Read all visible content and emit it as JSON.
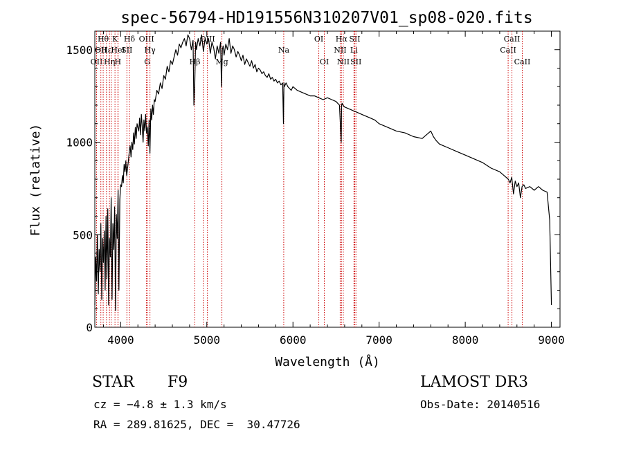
{
  "chart_data": {
    "type": "line",
    "title": "spec-56794-HD191556N310207V01_sp08-020.fits",
    "xlabel": "Wavelength (Å)",
    "ylabel": "Flux (relative)",
    "xlim": [
      3700,
      9100
    ],
    "ylim": [
      0,
      1600
    ],
    "xticks": [
      4000,
      5000,
      6000,
      7000,
      8000,
      9000
    ],
    "yticks": [
      0,
      500,
      1000,
      1500
    ],
    "grid": false,
    "line_color": "#000000",
    "marker_color": "#cc0000",
    "spectrum": {
      "x": [
        3700,
        3710,
        3720,
        3730,
        3740,
        3750,
        3760,
        3770,
        3780,
        3790,
        3800,
        3810,
        3820,
        3830,
        3840,
        3850,
        3860,
        3870,
        3880,
        3890,
        3900,
        3910,
        3920,
        3930,
        3940,
        3950,
        3960,
        3970,
        3980,
        3990,
        4000,
        4010,
        4020,
        4030,
        4040,
        4050,
        4060,
        4070,
        4080,
        4090,
        4100,
        4110,
        4120,
        4130,
        4140,
        4150,
        4160,
        4170,
        4180,
        4190,
        4200,
        4210,
        4220,
        4230,
        4240,
        4250,
        4260,
        4270,
        4280,
        4290,
        4300,
        4310,
        4320,
        4330,
        4340,
        4350,
        4360,
        4370,
        4380,
        4390,
        4400,
        4420,
        4440,
        4460,
        4480,
        4500,
        4520,
        4540,
        4560,
        4580,
        4600,
        4620,
        4640,
        4660,
        4680,
        4700,
        4720,
        4740,
        4760,
        4780,
        4800,
        4820,
        4840,
        4850,
        4860,
        4870,
        4880,
        4900,
        4920,
        4940,
        4960,
        4980,
        5000,
        5020,
        5040,
        5060,
        5080,
        5100,
        5120,
        5140,
        5160,
        5170,
        5180,
        5190,
        5200,
        5220,
        5240,
        5260,
        5280,
        5300,
        5320,
        5340,
        5360,
        5380,
        5400,
        5420,
        5440,
        5460,
        5480,
        5500,
        5520,
        5540,
        5560,
        5580,
        5600,
        5620,
        5640,
        5660,
        5680,
        5700,
        5720,
        5740,
        5760,
        5780,
        5800,
        5820,
        5840,
        5860,
        5880,
        5890,
        5895,
        5900,
        5920,
        5940,
        5960,
        5980,
        6000,
        6050,
        6100,
        6150,
        6200,
        6250,
        6300,
        6350,
        6400,
        6450,
        6500,
        6520,
        6540,
        6560,
        6565,
        6570,
        6580,
        6600,
        6650,
        6700,
        6750,
        6800,
        6850,
        6900,
        6950,
        7000,
        7100,
        7200,
        7300,
        7400,
        7500,
        7600,
        7630,
        7660,
        7700,
        7800,
        7900,
        8000,
        8100,
        8200,
        8300,
        8400,
        8450,
        8500,
        8520,
        8540,
        8560,
        8580,
        8600,
        8620,
        8640,
        8660,
        8680,
        8700,
        8750,
        8800,
        8850,
        8900,
        8950,
        8980,
        9000
      ],
      "y": [
        120,
        380,
        250,
        500,
        180,
        420,
        300,
        560,
        150,
        480,
        350,
        520,
        200,
        600,
        260,
        640,
        120,
        480,
        380,
        700,
        150,
        560,
        420,
        650,
        90,
        610,
        480,
        740,
        200,
        690,
        770,
        760,
        820,
        780,
        880,
        840,
        900,
        820,
        860,
        900,
        950,
        980,
        920,
        1000,
        960,
        1050,
        990,
        1080,
        1020,
        1100,
        1080,
        1060,
        1130,
        1040,
        1150,
        1090,
        1000,
        1120,
        1060,
        1150,
        1050,
        1080,
        980,
        1120,
        940,
        1180,
        1120,
        1200,
        1150,
        1230,
        1220,
        1280,
        1260,
        1320,
        1290,
        1360,
        1340,
        1410,
        1380,
        1440,
        1420,
        1460,
        1500,
        1470,
        1530,
        1510,
        1540,
        1560,
        1520,
        1580,
        1560,
        1500,
        1550,
        1200,
        1320,
        1540,
        1500,
        1560,
        1520,
        1580,
        1490,
        1560,
        1530,
        1560,
        1480,
        1540,
        1510,
        1450,
        1520,
        1480,
        1540,
        1300,
        1500,
        1520,
        1470,
        1530,
        1500,
        1560,
        1480,
        1520,
        1500,
        1460,
        1490,
        1470,
        1440,
        1470,
        1420,
        1450,
        1430,
        1410,
        1440,
        1400,
        1420,
        1380,
        1400,
        1390,
        1370,
        1380,
        1360,
        1350,
        1370,
        1340,
        1350,
        1330,
        1340,
        1320,
        1330,
        1310,
        1320,
        1100,
        1320,
        1300,
        1320,
        1300,
        1290,
        1280,
        1300,
        1280,
        1270,
        1260,
        1250,
        1250,
        1240,
        1230,
        1240,
        1230,
        1220,
        1210,
        1200,
        1000,
        1200,
        1210,
        1200,
        1190,
        1180,
        1170,
        1160,
        1150,
        1140,
        1130,
        1120,
        1100,
        1080,
        1060,
        1050,
        1030,
        1020,
        1060,
        1030,
        1010,
        990,
        970,
        950,
        930,
        910,
        890,
        860,
        840,
        820,
        800,
        780,
        810,
        720,
        790,
        760,
        780,
        700,
        760,
        770,
        750,
        760,
        740,
        760,
        740,
        730,
        580,
        120
      ]
    },
    "markers": [
      {
        "w": 3720,
        "label": "OII",
        "row": 2
      },
      {
        "w": 3770,
        "label": "OII",
        "row": 1
      },
      {
        "w": 3797,
        "label": "Hθ",
        "row": 0
      },
      {
        "w": 3835,
        "label": "Hε",
        "row": 1
      },
      {
        "w": 3870,
        "label": "Hη",
        "row": 2
      },
      {
        "w": 3889,
        "label": "",
        "row": -1
      },
      {
        "w": 3934,
        "label": "K",
        "row": 0
      },
      {
        "w": 3970,
        "label": "HeI",
        "row": 1
      },
      {
        "w": 3968,
        "label": "H",
        "row": 2
      },
      {
        "w": 4072,
        "label": "SII",
        "row": 1
      },
      {
        "w": 4102,
        "label": "Hδ",
        "row": 0
      },
      {
        "w": 4300,
        "label": "OIII",
        "row": 0
      },
      {
        "w": 4340,
        "label": "Hγ",
        "row": 1
      },
      {
        "w": 4308,
        "label": "G",
        "row": 2
      },
      {
        "w": 4861,
        "label": "Hβ",
        "row": 2
      },
      {
        "w": 4959,
        "label": "",
        "row": -1
      },
      {
        "w": 5007,
        "label": "OIII",
        "row": 0
      },
      {
        "w": 5175,
        "label": "Mg",
        "row": 2
      },
      {
        "w": 5893,
        "label": "Na",
        "row": 1
      },
      {
        "w": 6300,
        "label": "OI",
        "row": 0
      },
      {
        "w": 6364,
        "label": "OI",
        "row": 2
      },
      {
        "w": 6548,
        "label": "NII",
        "row": 1
      },
      {
        "w": 6563,
        "label": "Hα",
        "row": 0
      },
      {
        "w": 6584,
        "label": "NII",
        "row": 2
      },
      {
        "w": 6708,
        "label": "Li",
        "row": 1
      },
      {
        "w": 6717,
        "label": "SII",
        "row": 0
      },
      {
        "w": 6731,
        "label": "SII",
        "row": 2
      },
      {
        "w": 8498,
        "label": "CaII",
        "row": 1
      },
      {
        "w": 8542,
        "label": "CaII",
        "row": 0
      },
      {
        "w": 8662,
        "label": "CaII",
        "row": 2
      }
    ]
  },
  "footer": {
    "object_type": "STAR",
    "subclass": "F9",
    "cz": "cz = −4.8 ± 1.3 km/s",
    "radec": "RA = 289.81625, DEC =  30.47726",
    "survey": "LAMOST DR3",
    "obs_date": "Obs-Date: 20140516"
  }
}
